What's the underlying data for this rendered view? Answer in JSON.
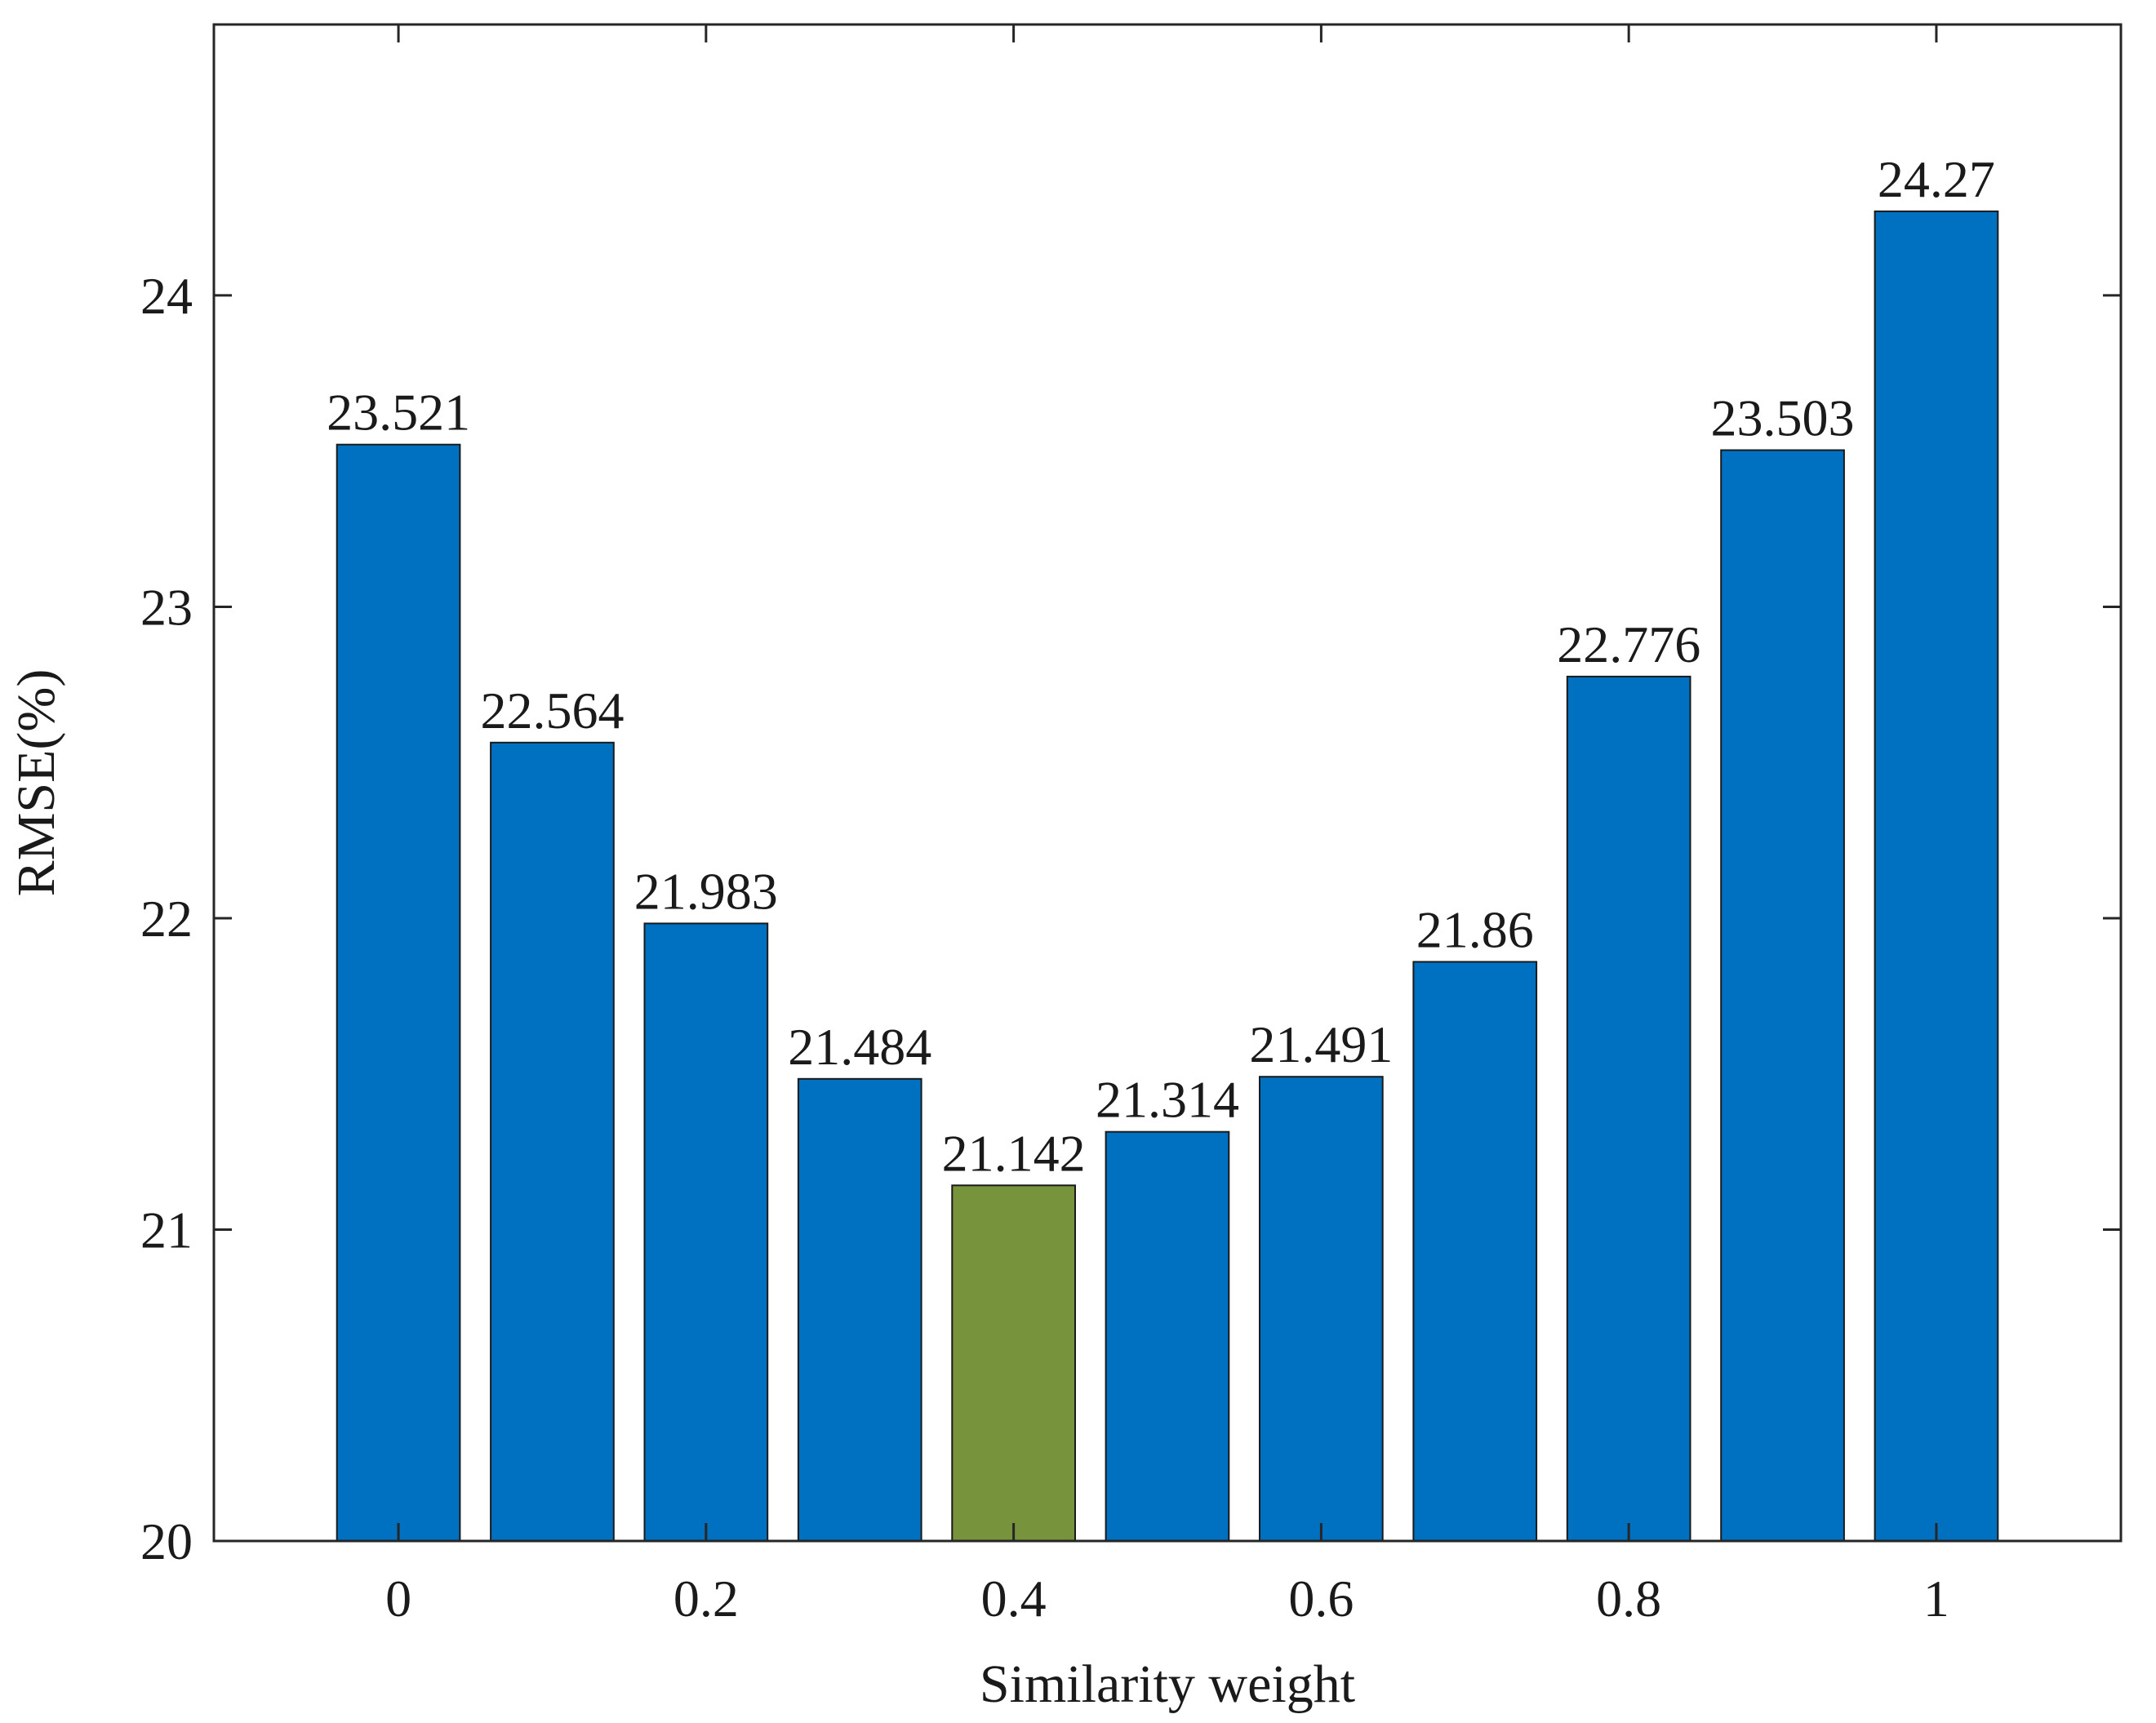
{
  "chart_data": {
    "type": "bar",
    "title": "",
    "xlabel": "Similarity weight",
    "ylabel": "RMSE(%)",
    "categories": [
      "0",
      "0.1",
      "0.2",
      "0.3",
      "0.4",
      "0.5",
      "0.6",
      "0.7",
      "0.8",
      "0.9",
      "1"
    ],
    "x": [
      0,
      0.1,
      0.2,
      0.3,
      0.4,
      0.5,
      0.6,
      0.7,
      0.8,
      0.9,
      1
    ],
    "values": [
      23.521,
      22.564,
      21.983,
      21.484,
      21.142,
      21.314,
      21.491,
      21.86,
      22.776,
      23.503,
      24.27
    ],
    "value_labels": [
      "23.521",
      "22.564",
      "21.983",
      "21.484",
      "21.142",
      "21.314",
      "21.491",
      "21.86",
      "22.776",
      "23.503",
      "24.27"
    ],
    "xticks": [
      0,
      0.2,
      0.4,
      0.6,
      0.8,
      1
    ],
    "xtick_labels": [
      "0",
      "0.2",
      "0.4",
      "0.6",
      "0.8",
      "1"
    ],
    "yticks": [
      20,
      21,
      22,
      23,
      24
    ],
    "ytick_labels": [
      "20",
      "21",
      "22",
      "23",
      "24"
    ],
    "xlim": [
      -0.12,
      1.12
    ],
    "ylim": [
      20,
      24.87
    ],
    "bar_width": 0.08,
    "grid": false,
    "highlight_index": 4,
    "colors": {
      "bar": "#0070C0",
      "highlight": "#77933C",
      "edge": "#1a1a1a",
      "axis": "#262626"
    }
  }
}
